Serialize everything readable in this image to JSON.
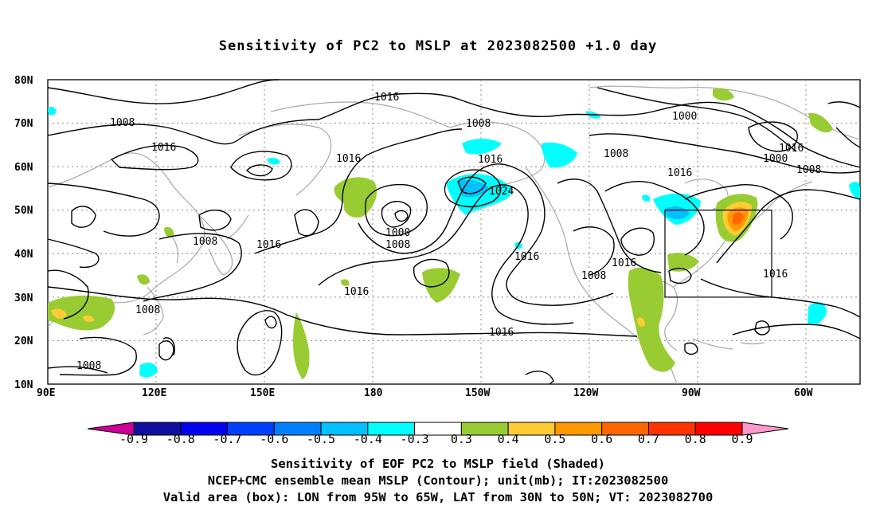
{
  "title": "Sensitivity of PC2 to MSLP at 2023082500 +1.0 day",
  "lat_labels": [
    "80N",
    "70N",
    "60N",
    "50N",
    "40N",
    "30N",
    "20N",
    "10N"
  ],
  "lon_labels": [
    "90E",
    "120E",
    "150E",
    "180",
    "150W",
    "120W",
    "90W",
    "60W"
  ],
  "contour_labels": [
    "1016",
    "1008",
    "1016",
    "1008",
    "1016",
    "1008",
    "1016",
    "1016",
    "1024",
    "1000",
    "1008",
    "1016",
    "1016",
    "1016",
    "1008",
    "1008",
    "1016",
    "1016",
    "1000",
    "1000",
    "1008",
    "1016",
    "1008",
    "1008",
    "1016"
  ],
  "colorbar": {
    "labels": [
      "-0.9",
      "-0.8",
      "-0.7",
      "-0.6",
      "-0.5",
      "-0.4",
      "-0.3",
      "0.3",
      "0.4",
      "0.5",
      "0.6",
      "0.7",
      "0.8",
      "0.9"
    ],
    "colors": [
      "#cc0099",
      "#1010a0",
      "#0000ee",
      "#0040ff",
      "#0080ff",
      "#00c0ff",
      "#00ffff",
      "#ffffff",
      "#99cc33",
      "#ffcc33",
      "#ff9900",
      "#ff6600",
      "#ff3300",
      "#ff0000",
      "#ff99cc"
    ]
  },
  "captions": [
    "Sensitivity of EOF PC2 to MSLP field (Shaded)",
    "NCEP+CMC ensemble mean MSLP (Contour); unit(mb); IT:2023082500",
    "Valid area (box): LON from 95W to 65W, LAT from 30N to 50N; VT: 2023082700"
  ]
}
